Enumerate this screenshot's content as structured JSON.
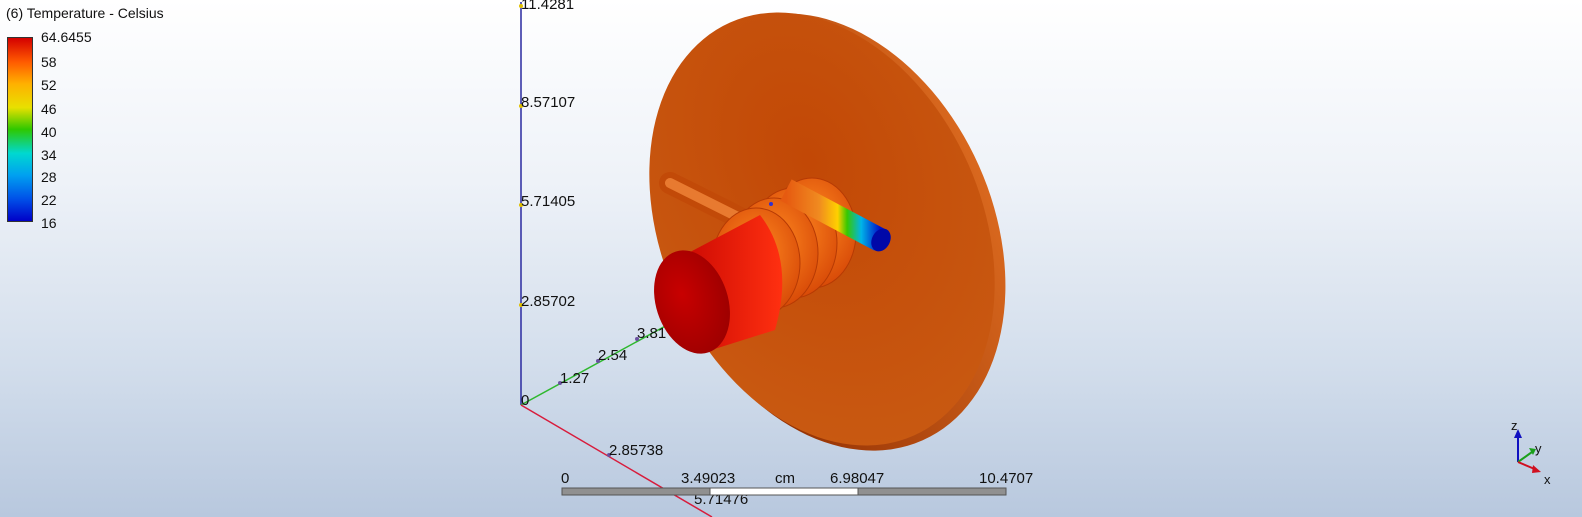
{
  "legend": {
    "title": "(6) Temperature - Celsius",
    "ticks": [
      "64.6455",
      "58",
      "52",
      "46",
      "40",
      "34",
      "28",
      "22",
      "16"
    ],
    "colors": [
      "#d40000",
      "#ff5a00",
      "#ffb000",
      "#e8e000",
      "#2ec800",
      "#00d8d0",
      "#00a0f0",
      "#0050e8",
      "#0000c8"
    ]
  },
  "axes": {
    "z_ticks": [
      "0",
      "2.85702",
      "5.71405",
      "8.57107",
      "11.4281"
    ],
    "y_ticks": [
      "1.27",
      "2.54",
      "3.81"
    ],
    "x_ticks": [
      "2.85738",
      "5.71476"
    ],
    "colors": {
      "z": "#2a2aa0",
      "y": "#2eb82e",
      "x": "#d81c3c"
    }
  },
  "scale_bar": {
    "ticks": [
      "0",
      "3.49023",
      "6.98047",
      "10.4707"
    ],
    "unit": "cm"
  },
  "triad": {
    "z": "z",
    "y": "y",
    "x": "x"
  },
  "colors": {
    "disk": "#c44a06",
    "cylinder": "#e01010"
  }
}
